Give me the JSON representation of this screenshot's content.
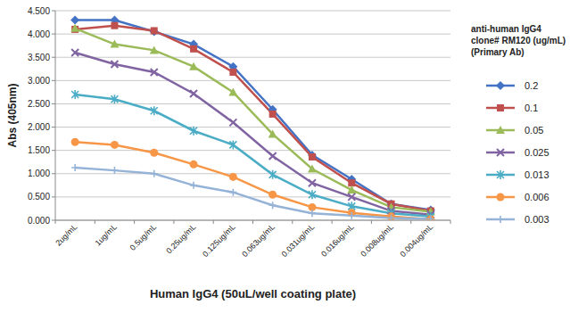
{
  "chart_data": {
    "type": "line",
    "y_label": "Abs (405nm)",
    "x_label": "Human IgG4 (50uL/well coating plate)",
    "legend_title": [
      "anti-human IgG4",
      "clone# RM120 (ug/mL)",
      "(Primary Ab)"
    ],
    "categories": [
      "2ug/mL",
      "1ug/mL",
      "0.5ug/mL",
      "0.25ug/mL",
      "0.125ug/mL",
      "0.063ug/mL",
      "0.031ug/mL",
      "0.016ug/mL",
      "0.008ug/mL",
      "0.004ug/mL"
    ],
    "ylim": [
      0,
      4.5
    ],
    "yticks": [
      {
        "value": 0,
        "label": "0.000"
      },
      {
        "value": 0.5,
        "label": "0.500"
      },
      {
        "value": 1,
        "label": "1.000"
      },
      {
        "value": 1.5,
        "label": "1.500"
      },
      {
        "value": 2,
        "label": "2.000"
      },
      {
        "value": 2.5,
        "label": "2.500"
      },
      {
        "value": 3,
        "label": "3.000"
      },
      {
        "value": 3.5,
        "label": "3.500"
      },
      {
        "value": 4,
        "label": "4.000"
      },
      {
        "value": 4.5,
        "label": "4.500"
      }
    ],
    "grid": true,
    "legend": "right",
    "series": [
      {
        "name": "0.2",
        "color": "#4472c4",
        "marker": "diamond",
        "values": [
          4.3,
          4.3,
          4.05,
          3.78,
          3.3,
          2.38,
          1.4,
          0.88,
          0.35,
          0.22
        ]
      },
      {
        "name": "0.1",
        "color": "#c0504d",
        "marker": "square",
        "values": [
          4.1,
          4.18,
          4.07,
          3.68,
          3.18,
          2.28,
          1.36,
          0.8,
          0.35,
          0.2
        ]
      },
      {
        "name": "0.05",
        "color": "#9bbb59",
        "marker": "triangle",
        "values": [
          4.12,
          3.78,
          3.65,
          3.3,
          2.75,
          1.85,
          1.1,
          0.65,
          0.28,
          0.18
        ]
      },
      {
        "name": "0.025",
        "color": "#8064a2",
        "marker": "x",
        "values": [
          3.6,
          3.35,
          3.18,
          2.72,
          2.1,
          1.38,
          0.8,
          0.5,
          0.2,
          0.12
        ]
      },
      {
        "name": "0.013",
        "color": "#4bacc6",
        "marker": "star",
        "values": [
          2.7,
          2.6,
          2.35,
          1.92,
          1.62,
          0.98,
          0.55,
          0.3,
          0.15,
          0.08
        ]
      },
      {
        "name": "0.006",
        "color": "#f79646",
        "marker": "circle",
        "values": [
          1.68,
          1.62,
          1.45,
          1.2,
          0.93,
          0.55,
          0.28,
          0.16,
          0.08,
          0.02
        ]
      },
      {
        "name": "0.003",
        "color": "#95b3d7",
        "marker": "plus",
        "values": [
          1.13,
          1.07,
          1.0,
          0.75,
          0.6,
          0.32,
          0.15,
          0.1,
          0.05,
          0.03
        ]
      }
    ]
  }
}
